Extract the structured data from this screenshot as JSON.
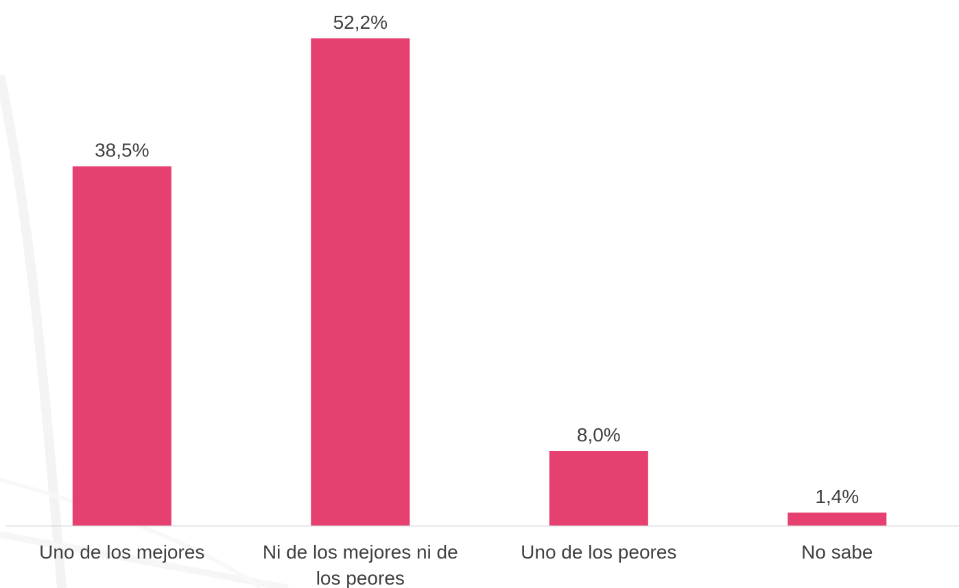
{
  "chart_data": {
    "type": "bar",
    "categories": [
      [
        "Uno de los mejores"
      ],
      [
        "Ni de los mejores ni de",
        "los peores"
      ],
      [
        "Uno de los peores"
      ],
      [
        "No sabe"
      ]
    ],
    "values": [
      38.5,
      52.2,
      8.0,
      1.4
    ],
    "data_labels": [
      "38,5%",
      "52,2%",
      "8,0%",
      "1,4%"
    ],
    "title": "",
    "xlabel": "",
    "ylabel": "",
    "ylim": [
      0,
      52.2
    ],
    "grid": false,
    "legend": "none",
    "bar_color": "#e5406f",
    "axis_color": "#d9d9d9",
    "text_color": "#404040"
  }
}
